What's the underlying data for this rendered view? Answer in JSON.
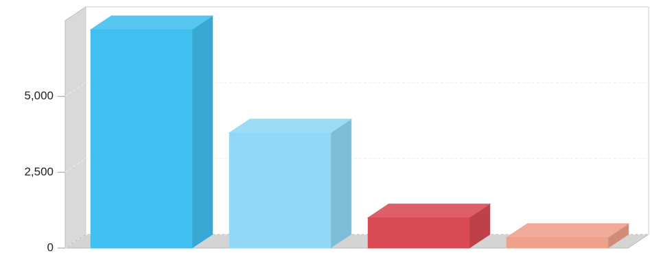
{
  "chart_data": {
    "type": "bar3d",
    "categories": [
      null,
      null,
      null,
      null
    ],
    "values": [
      7200,
      3800,
      1000,
      350
    ],
    "colors": [
      "#3fc0f0",
      "#90d8f5",
      "#d94a55",
      "#eda08a"
    ],
    "ylim": [
      0,
      7500
    ],
    "yticks": [
      0,
      {
        "value": 2500,
        "label": "2,500"
      },
      {
        "value": 5000,
        "label": "5,000"
      }
    ],
    "grid": true
  }
}
